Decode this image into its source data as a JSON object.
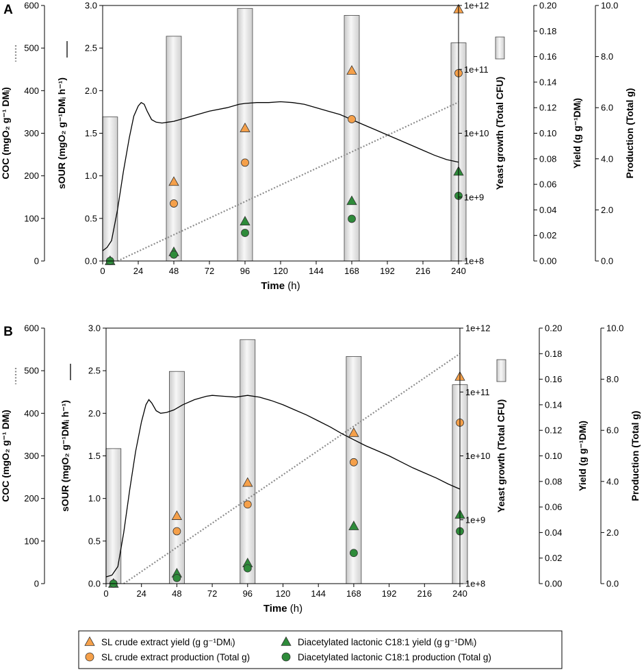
{
  "figure": {
    "legend": {
      "items": [
        {
          "marker": "triangle",
          "color": "#f5a04a",
          "label": "SL crude extract yield (g g⁻¹DMᵢ)"
        },
        {
          "marker": "circle",
          "color": "#f5a04a",
          "label": "SL crude extract production (Total g)"
        },
        {
          "marker": "triangle",
          "color": "#2e8b3a",
          "label": "Diacetylated lactonic C18:1 yield (g g⁻¹DMᵢ)"
        },
        {
          "marker": "circle",
          "color": "#2e8b3a",
          "label": "Diacetylated lactonic C18:1 production (Total g)"
        }
      ]
    }
  },
  "chart_data": [
    {
      "panel": "A",
      "type": "combo",
      "xlabel": "Time (h)",
      "xlim": [
        0,
        240
      ],
      "xticks": [
        0,
        24,
        48,
        72,
        96,
        120,
        144,
        168,
        192,
        216,
        240
      ],
      "axes": {
        "coc": {
          "label": "COC (mgO₂ g⁻¹ DMᵢ)",
          "lim": [
            0,
            600
          ],
          "ticks": [
            "0",
            "100",
            "200",
            "300",
            "400",
            "500",
            "600"
          ]
        },
        "sour": {
          "label": "sOUR (mgO₂ g⁻¹DMᵢ h⁻¹)",
          "lim": [
            0,
            3
          ],
          "ticks": [
            "0.0",
            "0.5",
            "1.0",
            "1.5",
            "2.0",
            "2.5",
            "3.0"
          ]
        },
        "growth": {
          "label": "Yeast growth (Total CFU)",
          "scale": "log",
          "lim": [
            100000000.0,
            1000000000000.0
          ],
          "ticks": [
            "1e+8",
            "1e+9",
            "1e+10",
            "1e+11",
            "1e+12"
          ]
        },
        "yield": {
          "label": "Yield (g g⁻¹DMᵢ)",
          "lim": [
            0,
            0.2
          ],
          "ticks": [
            "0.00",
            "0.02",
            "0.04",
            "0.06",
            "0.08",
            "0.10",
            "0.12",
            "0.14",
            "0.16",
            "0.18",
            "0.20"
          ]
        },
        "production": {
          "label": "Production (Total g)",
          "lim": [
            0,
            10
          ],
          "ticks": [
            "0.0",
            "2.0",
            "4.0",
            "6.0",
            "8.0",
            "10.0"
          ]
        }
      },
      "series": {
        "growth_bars": {
          "x": [
            5,
            48,
            96,
            168,
            240
          ],
          "values": [
            18000000000.0,
            330000000000.0,
            900000000000.0,
            700000000000.0,
            260000000000.0
          ]
        },
        "sour": [
          [
            0,
            0.12
          ],
          [
            3,
            0.16
          ],
          [
            6,
            0.24
          ],
          [
            10,
            0.6
          ],
          [
            14,
            1.05
          ],
          [
            18,
            1.45
          ],
          [
            21,
            1.7
          ],
          [
            24,
            1.82
          ],
          [
            26,
            1.86
          ],
          [
            28,
            1.84
          ],
          [
            30,
            1.76
          ],
          [
            33,
            1.66
          ],
          [
            36,
            1.63
          ],
          [
            40,
            1.62
          ],
          [
            44,
            1.63
          ],
          [
            48,
            1.64
          ],
          [
            52,
            1.66
          ],
          [
            60,
            1.7
          ],
          [
            72,
            1.76
          ],
          [
            84,
            1.8
          ],
          [
            92,
            1.84
          ],
          [
            96,
            1.85
          ],
          [
            104,
            1.86
          ],
          [
            112,
            1.86
          ],
          [
            120,
            1.87
          ],
          [
            128,
            1.86
          ],
          [
            136,
            1.84
          ],
          [
            144,
            1.8
          ],
          [
            152,
            1.76
          ],
          [
            160,
            1.72
          ],
          [
            168,
            1.66
          ],
          [
            176,
            1.6
          ],
          [
            184,
            1.54
          ],
          [
            192,
            1.48
          ],
          [
            200,
            1.42
          ],
          [
            208,
            1.36
          ],
          [
            216,
            1.3
          ],
          [
            224,
            1.24
          ],
          [
            232,
            1.19
          ],
          [
            240,
            1.16
          ]
        ],
        "coc": [
          [
            10,
            0
          ],
          [
            240,
            373
          ]
        ],
        "sl_yield": {
          "x": [
            5,
            48,
            96,
            168,
            240
          ],
          "values": [
            0.0,
            0.062,
            0.104,
            0.149,
            0.197
          ]
        },
        "sl_production": {
          "x": [
            5,
            48,
            96,
            168,
            240
          ],
          "values": [
            0.0,
            2.25,
            3.85,
            5.55,
            7.35
          ]
        },
        "c18_yield": {
          "x": [
            5,
            48,
            96,
            168,
            240
          ],
          "values": [
            0.0,
            0.007,
            0.031,
            0.047,
            0.07
          ]
        },
        "c18_production": {
          "x": [
            5,
            48,
            96,
            168,
            240
          ],
          "values": [
            0.0,
            0.25,
            1.1,
            1.65,
            2.55
          ]
        }
      }
    },
    {
      "panel": "B",
      "type": "combo",
      "xlabel": "Time (h)",
      "xlim": [
        0,
        240
      ],
      "xticks": [
        0,
        24,
        48,
        72,
        96,
        120,
        144,
        168,
        192,
        216,
        240
      ],
      "axes": {
        "coc": {
          "label": "COC (mgO₂ g⁻¹ DMᵢ)",
          "lim": [
            0,
            600
          ],
          "ticks": [
            "0",
            "100",
            "200",
            "300",
            "400",
            "500",
            "600"
          ]
        },
        "sour": {
          "label": "sOUR (mgO₂ g⁻¹DMᵢ h⁻¹)",
          "lim": [
            0,
            3
          ],
          "ticks": [
            "0.0",
            "0.5",
            "1.0",
            "1.5",
            "2.0",
            "2.5",
            "3.0"
          ]
        },
        "growth": {
          "label": "Yeast growth (Total CFU)",
          "scale": "log",
          "lim": [
            100000000.0,
            1000000000000.0
          ],
          "ticks": [
            "1e+8",
            "1e+9",
            "1e+10",
            "1e+11",
            "1e+12"
          ]
        },
        "yield": {
          "label": "Yield (g g⁻¹DMᵢ)",
          "lim": [
            0,
            0.2
          ],
          "ticks": [
            "0.00",
            "0.02",
            "0.04",
            "0.06",
            "0.08",
            "0.10",
            "0.12",
            "0.14",
            "0.16",
            "0.18",
            "0.20"
          ]
        },
        "production": {
          "label": "Production (Total g)",
          "lim": [
            0,
            10
          ],
          "ticks": [
            "0.0",
            "2.0",
            "4.0",
            "6.0",
            "8.0",
            "10.0"
          ]
        }
      },
      "series": {
        "growth_bars": {
          "x": [
            5,
            48,
            96,
            168,
            240
          ],
          "values": [
            13000000000.0,
            210000000000.0,
            660000000000.0,
            360000000000.0,
            130000000000.0
          ]
        },
        "sour": [
          [
            0,
            0.08
          ],
          [
            4,
            0.1
          ],
          [
            8,
            0.2
          ],
          [
            12,
            0.6
          ],
          [
            16,
            1.1
          ],
          [
            20,
            1.55
          ],
          [
            24,
            1.9
          ],
          [
            27,
            2.1
          ],
          [
            29,
            2.16
          ],
          [
            31,
            2.12
          ],
          [
            34,
            2.03
          ],
          [
            37,
            2.0
          ],
          [
            41,
            2.01
          ],
          [
            46,
            2.04
          ],
          [
            52,
            2.1
          ],
          [
            60,
            2.16
          ],
          [
            68,
            2.2
          ],
          [
            72,
            2.21
          ],
          [
            80,
            2.2
          ],
          [
            88,
            2.19
          ],
          [
            96,
            2.21
          ],
          [
            104,
            2.19
          ],
          [
            112,
            2.15
          ],
          [
            120,
            2.1
          ],
          [
            128,
            2.04
          ],
          [
            136,
            1.98
          ],
          [
            144,
            1.91
          ],
          [
            152,
            1.84
          ],
          [
            160,
            1.76
          ],
          [
            168,
            1.69
          ],
          [
            176,
            1.62
          ],
          [
            184,
            1.56
          ],
          [
            192,
            1.5
          ],
          [
            200,
            1.43
          ],
          [
            208,
            1.36
          ],
          [
            216,
            1.3
          ],
          [
            224,
            1.24
          ],
          [
            232,
            1.17
          ],
          [
            240,
            1.11
          ]
        ],
        "coc": [
          [
            12,
            0
          ],
          [
            240,
            540
          ]
        ],
        "sl_yield": {
          "x": [
            5,
            48,
            96,
            168,
            240
          ],
          "values": [
            0.0,
            0.053,
            0.079,
            0.118,
            0.162
          ]
        },
        "sl_production": {
          "x": [
            5,
            48,
            96,
            168,
            240
          ],
          "values": [
            0.0,
            2.05,
            3.1,
            4.75,
            6.3
          ]
        },
        "c18_yield": {
          "x": [
            5,
            48,
            96,
            168,
            240
          ],
          "values": [
            0.0,
            0.008,
            0.016,
            0.045,
            0.054
          ]
        },
        "c18_production": {
          "x": [
            5,
            48,
            96,
            168,
            240
          ],
          "values": [
            0.0,
            0.22,
            0.6,
            1.2,
            2.05
          ]
        }
      }
    }
  ]
}
